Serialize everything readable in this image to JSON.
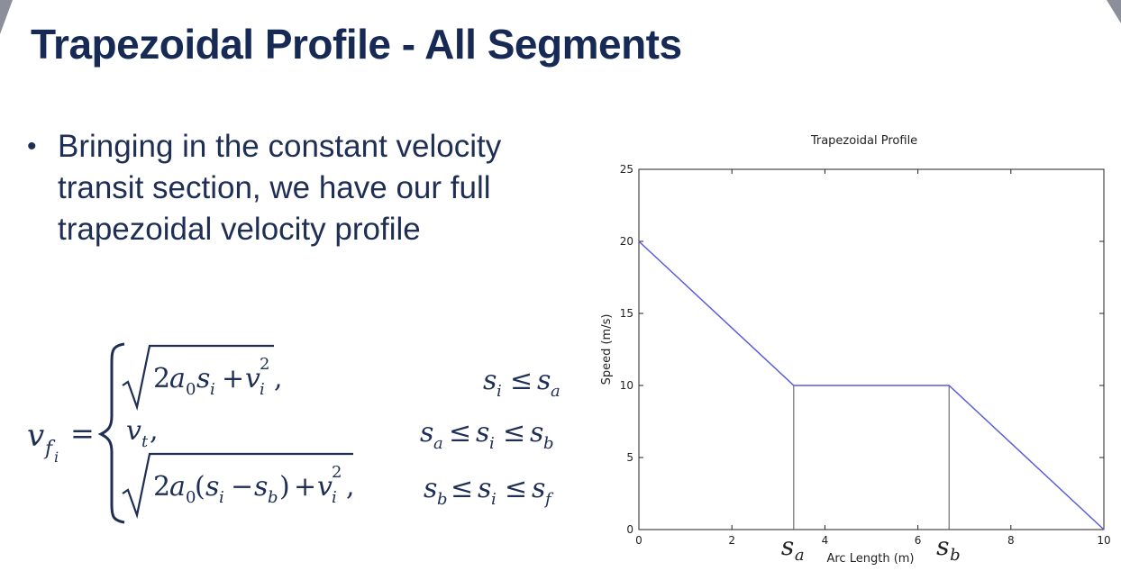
{
  "slide": {
    "title": "Trapezoidal Profile - All Segments",
    "bullet_lines": [
      "Bringing in the constant velocity",
      "transit section, we have our full",
      "trapezoidal velocity profile"
    ]
  },
  "equation": {
    "lhs_base": "v",
    "lhs_sub": "f",
    "lhs_subsub": "i",
    "equals": "=",
    "cases": [
      {
        "expr_num": "2",
        "expr_a": "a",
        "expr_a_sub": "0",
        "expr_s": "s",
        "expr_s_sub": "i",
        "expr_plus": "+",
        "expr_v": "v",
        "expr_v_sub": "i",
        "expr_v_sup": "2",
        "expr_comma": ",",
        "cond": "s_i ≤ s_a"
      },
      {
        "expr": "v_t,",
        "cond": "s_a ≤ s_i ≤ s_b"
      },
      {
        "expr_full": "2a_0(s_i − s_b) + v_i^2,",
        "cond": "s_b ≤ s_i ≤ s_f"
      }
    ],
    "case1_cond_s": "s",
    "case1_cond_i": "i",
    "case1_cond_le": "≤",
    "case1_cond_s2": "s",
    "case1_cond_a": "a",
    "case2_v": "v",
    "case2_t": "t",
    "case2_comma": ",",
    "case2_cond_sa": "s",
    "case2_cond_a": "a",
    "case2_le1": "≤",
    "case2_si": "s",
    "case2_i": "i",
    "case2_le2": "≤",
    "case2_sb": "s",
    "case2_b": "b",
    "case3_2": "2",
    "case3_a": "a",
    "case3_0": "0",
    "case3_open": "(",
    "case3_s": "s",
    "case3_i": "i",
    "case3_minus": "−",
    "case3_s2": "s",
    "case3_b": "b",
    "case3_close": ")",
    "case3_plus": "+",
    "case3_v": "v",
    "case3_vi": "i",
    "case3_v2": "2",
    "case3_comma": ",",
    "case3_cond_sb": "s",
    "case3_cond_b": "b",
    "case3_le1": "≤",
    "case3_cond_si": "s",
    "case3_cond_i": "i",
    "case3_le2": "≤",
    "case3_cond_sf": "s",
    "case3_cond_f": "f"
  },
  "chart_data": {
    "type": "line",
    "title": "Trapezoidal Profile",
    "xlabel": "Arc Length (m)",
    "ylabel": "Speed (m/s)",
    "xlim": [
      0,
      10
    ],
    "ylim": [
      0,
      25
    ],
    "xticks": [
      "0",
      "2",
      "4",
      "6",
      "8",
      "10"
    ],
    "xtick_values": [
      0,
      2,
      4,
      6,
      8,
      10
    ],
    "yticks": [
      "0",
      "5",
      "10",
      "15",
      "20",
      "25"
    ],
    "ytick_values": [
      0,
      5,
      10,
      15,
      20,
      25
    ],
    "grid": false,
    "line_color": "#5a5adf",
    "series": [
      {
        "x": [
          0,
          3.33,
          6.67,
          10
        ],
        "y": [
          20,
          10,
          10,
          0
        ]
      }
    ],
    "markers": [
      {
        "x": 3.33,
        "y": 10,
        "label_base": "s",
        "label_sub": "a"
      },
      {
        "x": 6.67,
        "y": 10,
        "label_base": "s",
        "label_sub": "b"
      }
    ]
  }
}
